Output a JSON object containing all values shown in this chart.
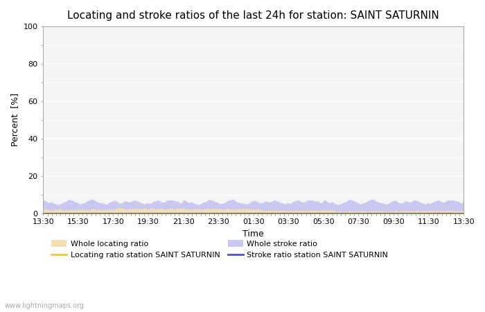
{
  "title": "Locating and stroke ratios of the last 24h for station: SAINT SATURNIN",
  "xlabel": "Time",
  "ylabel": "Percent  [%]",
  "xlim": [
    0,
    48
  ],
  "ylim": [
    0,
    100
  ],
  "yticks": [
    0,
    20,
    40,
    60,
    80,
    100
  ],
  "ytick_minor": [
    10,
    30,
    50,
    70,
    90
  ],
  "xtick_labels": [
    "13:30",
    "15:30",
    "17:30",
    "19:30",
    "21:30",
    "23:30",
    "01:30",
    "03:30",
    "05:30",
    "07:30",
    "09:30",
    "11:30",
    "13:30"
  ],
  "background_color": "#ffffff",
  "plot_bg_color": "#f5f5f5",
  "grid_color": "#ffffff",
  "whole_locating_fill_color": "#f5deb3",
  "whole_stroke_fill_color": "#c8c8f0",
  "locating_line_color": "#e8c840",
  "stroke_line_color": "#5050c8",
  "watermark": "www.lightningmaps.org",
  "legend_entries": [
    "Whole locating ratio",
    "Locating ratio station SAINT SATURNIN",
    "Whole stroke ratio",
    "Stroke ratio station SAINT SATURNIN"
  ],
  "title_fontsize": 11,
  "axis_fontsize": 9,
  "tick_fontsize": 8
}
